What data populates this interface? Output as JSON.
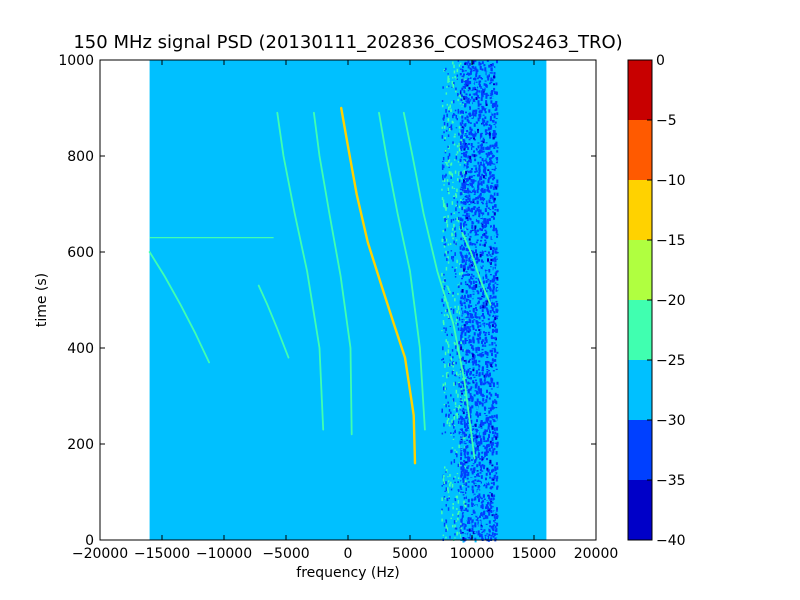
{
  "chart_data": {
    "type": "heatmap",
    "title": "150 MHz signal PSD (20130111_202836_COSMOS2463_TRO)",
    "xlabel": "frequency (Hz)",
    "ylabel": "time (s)",
    "xlim": [
      -20000,
      20000
    ],
    "ylim": [
      0,
      1000
    ],
    "x_ticks": [
      -20000,
      -15000,
      -10000,
      -5000,
      0,
      5000,
      10000,
      15000,
      20000
    ],
    "x_tick_labels": [
      "−20000",
      "−15000",
      "−10000",
      "−5000",
      "0",
      "5000",
      "10000",
      "15000",
      "20000"
    ],
    "y_ticks": [
      0,
      200,
      400,
      600,
      800,
      1000
    ],
    "y_tick_labels": [
      "0",
      "200",
      "400",
      "600",
      "800",
      "1000"
    ],
    "data_extent_x": [
      -16000,
      16000
    ],
    "data_extent_y": [
      0,
      1000
    ],
    "background_level": -27.5,
    "noise_band": {
      "x_range": [
        7500,
        9500
      ],
      "level": "mixed -30 to -25"
    },
    "strong_noise_band": {
      "x_range": [
        9000,
        12000
      ],
      "level": -32.5
    },
    "horizontal_line": {
      "y": 630,
      "x_range": [
        -16000,
        -6000
      ],
      "level": -22.5
    },
    "colorbar": {
      "levels": [
        -40,
        -35,
        -30,
        -25,
        -20,
        -15,
        -10,
        -5,
        0
      ],
      "tick_labels": [
        "−40",
        "−35",
        "−30",
        "−25",
        "−20",
        "−15",
        "−10",
        "−5",
        "0"
      ],
      "colors": [
        "#0000c8",
        "#0040ff",
        "#00c0ff",
        "#40ffb0",
        "#b0ff40",
        "#ffd200",
        "#ff5a00",
        "#c80000"
      ]
    },
    "series": [
      {
        "level": -12.5,
        "x": [
          -550,
          0,
          700,
          1600,
          2700,
          3700,
          4600,
          5300,
          5400
        ],
        "y": [
          900,
          820,
          720,
          620,
          530,
          450,
          380,
          260,
          160
        ]
      },
      {
        "level": -22.5,
        "x": [
          -2750,
          -2300,
          -1500,
          -600,
          200,
          300
        ],
        "y": [
          890,
          800,
          680,
          550,
          400,
          220
        ]
      },
      {
        "level": -22.5,
        "x": [
          -5700,
          -5200,
          -4300,
          -3300,
          -2300,
          -2000
        ],
        "y": [
          890,
          800,
          680,
          560,
          400,
          230
        ]
      },
      {
        "level": -22.5,
        "x": [
          2500,
          3100,
          4000,
          5000,
          5800,
          6200
        ],
        "y": [
          890,
          800,
          680,
          560,
          400,
          230
        ]
      },
      {
        "level": -22.5,
        "x": [
          4500,
          5200,
          6100,
          7200,
          8500,
          9400,
          10200
        ],
        "y": [
          890,
          800,
          680,
          560,
          450,
          330,
          170
        ]
      },
      {
        "level": -22.5,
        "x": [
          -16000,
          -14800,
          -13500,
          -12300,
          -11200
        ],
        "y": [
          600,
          550,
          490,
          430,
          370
        ]
      },
      {
        "level": -22.5,
        "x": [
          -7200,
          -6500,
          -5700,
          -4800
        ],
        "y": [
          530,
          490,
          440,
          380
        ]
      },
      {
        "level": -22.5,
        "x": [
          9200,
          9900,
          10700,
          11500
        ],
        "y": [
          640,
          600,
          540,
          490
        ]
      }
    ]
  }
}
